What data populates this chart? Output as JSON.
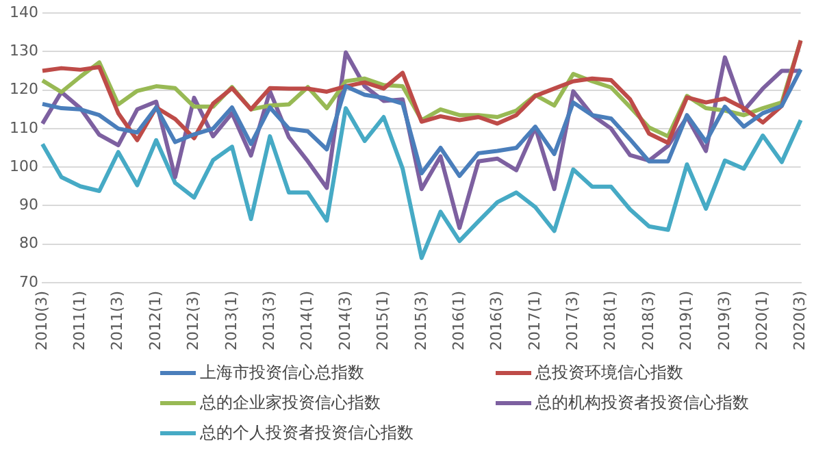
{
  "chart_data": {
    "type": "line",
    "categories": [
      "2010(3)",
      null,
      "2011(1)",
      null,
      "2011(3)",
      null,
      "2012(1)",
      null,
      "2012(3)",
      null,
      "2013(1)",
      null,
      "2013(3)",
      null,
      "2014(1)",
      null,
      "2014(3)",
      null,
      "2015(1)",
      null,
      "2015(3)",
      null,
      "2016(1)",
      null,
      "2016(3)",
      null,
      "2017(1)",
      null,
      "2017(3)",
      null,
      "2018(1)",
      null,
      "2018(3)",
      null,
      "2019(1)",
      null,
      "2019(3)",
      null,
      "2020(1)",
      null,
      "2020(3)"
    ],
    "series": [
      {
        "name": "上海市投资信心总指数",
        "color": "#4a7ebb",
        "values": [
          116.4,
          115.3,
          115,
          113.5,
          110,
          109,
          115.5,
          106.5,
          108.5,
          110,
          115.5,
          106,
          115.5,
          110,
          109.3,
          104.6,
          121,
          118.8,
          118,
          116.5,
          98.4,
          105,
          97.7,
          103.6,
          104.2,
          105,
          110.5,
          103.4,
          116.8,
          113.5,
          112.6,
          107.2,
          101.5,
          101.5,
          113.5,
          106.6,
          115.7,
          110.5,
          114,
          115.9,
          125.4
        ]
      },
      {
        "name": "总投资环境信心指数",
        "color": "#be4b48",
        "values": [
          125,
          125.7,
          125.3,
          126,
          114,
          107,
          115.5,
          112.5,
          107.5,
          116.5,
          120.5,
          115,
          120.5,
          120.4,
          120.4,
          119.6,
          121,
          122,
          120.4,
          124.5,
          111.8,
          113.2,
          112.2,
          113,
          111.3,
          113.5,
          118.5,
          120.4,
          122.3,
          123,
          122.6,
          117.6,
          108.7,
          106.3,
          118.1,
          116.8,
          117.8,
          115.3,
          111.6,
          115.9,
          132.9
        ]
      },
      {
        "name": "总的企业家投资信心指数",
        "color": "#98b954",
        "values": [
          122.5,
          119.5,
          123.5,
          127.2,
          116.3,
          119.8,
          121,
          120.5,
          115.7,
          115.7,
          120.8,
          115,
          116,
          116.3,
          120.8,
          115.3,
          122.3,
          123,
          121.3,
          121,
          112.2,
          115,
          113.5,
          113.5,
          113,
          114.7,
          118.7,
          116,
          124.2,
          122.3,
          120.7,
          115.6,
          110.3,
          108,
          118.5,
          115.3,
          114.7,
          113.5,
          115.3,
          116.8,
          132.9
        ]
      },
      {
        "name": "总的机构投资者投资信心指数",
        "color": "#7d60a0",
        "values": [
          111.3,
          119.5,
          115.3,
          108.4,
          105.7,
          115,
          117,
          97.4,
          118,
          108,
          114,
          103,
          119.7,
          107.8,
          101.5,
          94.6,
          129.8,
          121,
          117.2,
          117.6,
          94.3,
          102.8,
          84.2,
          101.5,
          102.2,
          99.2,
          110.3,
          94.3,
          119.7,
          113.5,
          110,
          103.1,
          101.7,
          105.5,
          113,
          104.2,
          128.5,
          114.7,
          120.4,
          125,
          125
        ]
      },
      {
        "name": "总的个人投资者投资信心指数",
        "color": "#46aac5",
        "values": [
          106,
          97.4,
          95,
          93.8,
          103.9,
          95.3,
          107,
          95.9,
          92.1,
          101.8,
          105.3,
          86.5,
          108,
          93.4,
          93.4,
          86.1,
          115.3,
          106.8,
          113,
          99.6,
          76.4,
          88.4,
          80.8,
          85.9,
          90.9,
          93.4,
          89.6,
          83.4,
          99.4,
          94.9,
          94.9,
          89,
          84.6,
          83.7,
          100.7,
          89.2,
          101.7,
          99.6,
          108.2,
          101.3,
          112.2
        ]
      }
    ],
    "ylim": [
      70,
      140
    ],
    "yticks": [
      70,
      80,
      90,
      100,
      110,
      120,
      130,
      140
    ],
    "grid": "y",
    "legend": "bottom",
    "marker": "none",
    "line_style": "solid"
  }
}
